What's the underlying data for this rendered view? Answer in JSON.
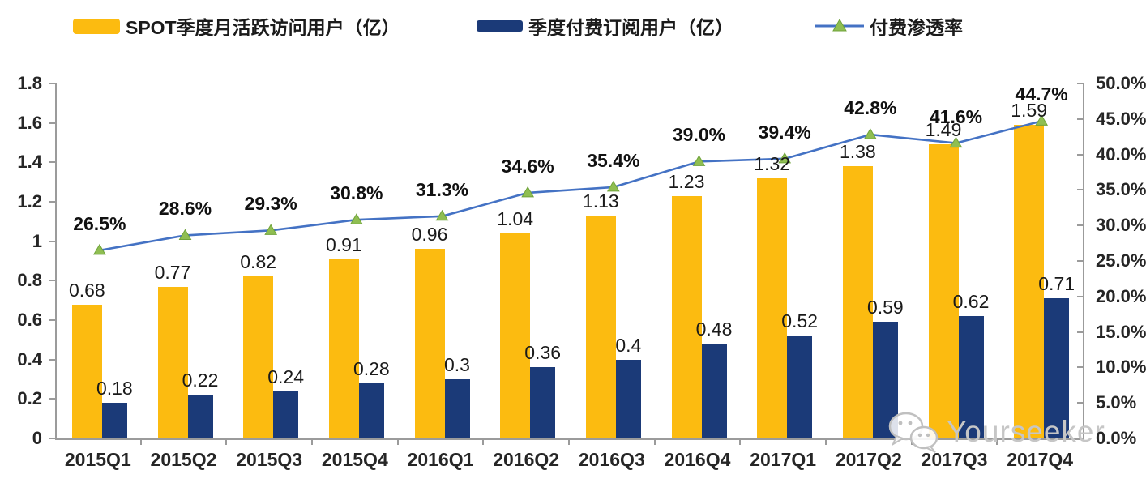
{
  "legend": {
    "items": [
      {
        "label": "SPOT季度月活跃访问用户（亿）",
        "swatch": "bar",
        "color": "#FCBB10"
      },
      {
        "label": "季度付费订阅用户（亿）",
        "swatch": "bar",
        "color": "#1B3A78"
      },
      {
        "label": "付费渗透率",
        "swatch": "line-triangle",
        "color": "#4472C4",
        "marker_color": "#8FBE52"
      }
    ]
  },
  "watermark": {
    "text": "Yourseeker",
    "icon": "wechat-icon"
  },
  "chart_data": {
    "type": "bar",
    "subtype": "grouped-bars-with-line",
    "title": "",
    "xlabel": "",
    "ylabel": "",
    "grid": false,
    "legend_position": "top",
    "categories": [
      "2015Q1",
      "2015Q2",
      "2015Q3",
      "2015Q4",
      "2016Q1",
      "2016Q2",
      "2016Q3",
      "2016Q4",
      "2017Q1",
      "2017Q2",
      "2017Q3",
      "2017Q4"
    ],
    "series": [
      {
        "name": "SPOT季度月活跃访问用户（亿）",
        "type": "bar",
        "axis": "left",
        "color": "#FCBB10",
        "values": [
          0.68,
          0.77,
          0.82,
          0.91,
          0.96,
          1.04,
          1.13,
          1.23,
          1.32,
          1.38,
          1.49,
          1.59
        ],
        "labels": [
          "0.68",
          "0.77",
          "0.82",
          "0.91",
          "0.96",
          "1.04",
          "1.13",
          "1.23",
          "1.32",
          "1.38",
          "1.49",
          "1.59"
        ]
      },
      {
        "name": "季度付费订阅用户（亿）",
        "type": "bar",
        "axis": "left",
        "color": "#1B3A78",
        "values": [
          0.18,
          0.22,
          0.24,
          0.28,
          0.3,
          0.36,
          0.4,
          0.48,
          0.52,
          0.59,
          0.62,
          0.71
        ],
        "labels": [
          "0.18",
          "0.22",
          "0.24",
          "0.28",
          "0.3",
          "0.36",
          "0.4",
          "0.48",
          "0.52",
          "0.59",
          "0.62",
          "0.71"
        ]
      },
      {
        "name": "付费渗透率",
        "type": "line",
        "axis": "right",
        "color": "#4472C4",
        "marker": "triangle",
        "marker_color": "#8FBE52",
        "marker_edge": "#6FA33A",
        "values": [
          26.5,
          28.6,
          29.3,
          30.8,
          31.3,
          34.6,
          35.4,
          39.0,
          39.4,
          42.8,
          41.6,
          44.7
        ],
        "labels": [
          "26.5%",
          "28.6%",
          "29.3%",
          "30.8%",
          "31.3%",
          "34.6%",
          "35.4%",
          "39.0%",
          "39.4%",
          "42.8%",
          "41.6%",
          "44.7%"
        ]
      }
    ],
    "left_axis": {
      "min": 0,
      "max": 1.8,
      "step": 0.2,
      "ticks": [
        "1.8",
        "1.6",
        "1.4",
        "1.2",
        "1",
        "0.8",
        "0.6",
        "0.4",
        "0.2",
        "0"
      ]
    },
    "right_axis": {
      "min": 0,
      "max": 50,
      "step": 5,
      "ticks": [
        "50.0%",
        "45.0%",
        "40.0%",
        "35.0%",
        "30.0%",
        "25.0%",
        "20.0%",
        "15.0%",
        "10.0%",
        "5.0%",
        "0.0%"
      ]
    }
  }
}
